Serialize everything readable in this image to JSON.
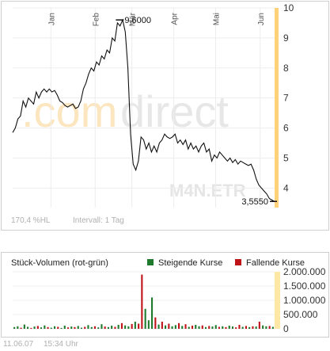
{
  "chart_data": [
    {
      "type": "line",
      "months": [
        "Jan",
        "Feb",
        "Mär",
        "Apr",
        "Mai",
        "Jun"
      ],
      "y_ticks": [
        "10",
        "9",
        "8",
        "7",
        "6",
        "5",
        "4"
      ],
      "ylim": [
        3.35,
        10
      ],
      "x_range": [
        0,
        100
      ],
      "y": [
        5.85,
        6.0,
        6.3,
        6.4,
        6.9,
        6.7,
        7.0,
        6.9,
        6.8,
        7.2,
        7.0,
        7.2,
        7.3,
        7.2,
        7.3,
        7.2,
        7.25,
        7.1,
        6.9,
        6.85,
        6.75,
        6.7,
        6.75,
        6.8,
        6.65,
        6.7,
        6.9,
        7.3,
        7.5,
        7.8,
        8.0,
        7.9,
        8.2,
        8.1,
        8.4,
        8.3,
        8.6,
        8.5,
        9.0,
        8.9,
        9.5,
        9.4,
        9.6,
        9.2,
        8.0,
        5.8,
        4.8,
        4.6,
        4.9,
        5.7,
        5.6,
        5.3,
        5.5,
        5.2,
        5.4,
        5.2,
        5.5,
        5.6,
        5.8,
        5.7,
        5.65,
        5.7,
        5.8,
        5.5,
        5.6,
        5.45,
        5.6,
        5.3,
        5.5,
        5.3,
        5.4,
        5.2,
        5.4,
        5.5,
        5.2,
        5.3,
        4.9,
        5.1,
        5.0,
        5.2,
        5.1,
        5.0,
        4.9,
        5.0,
        4.85,
        4.95,
        4.8,
        4.9,
        4.85,
        4.8,
        4.75,
        4.8,
        4.6,
        4.3,
        4.1,
        4.0,
        3.9,
        3.8,
        3.65,
        3.6,
        3.55
      ],
      "annotations": [
        {
          "label": "9,6000",
          "x": 41.5,
          "y": 9.6
        },
        {
          "label": "3,5550",
          "x": 100,
          "y": 3.555
        }
      ]
    },
    {
      "type": "bar",
      "title": "Stück-Volumen (rot-grün)",
      "y_ticks": [
        "2.000.000",
        "1.500.000",
        "1.000.000",
        "500.000",
        "0"
      ],
      "ylim": [
        0,
        2000000
      ],
      "series": [
        {
          "name": "Steigende Kurse",
          "color": "#1f7a2e"
        },
        {
          "name": "Fallende Kurse",
          "color": "#c0141a"
        }
      ],
      "values": [
        60000,
        90000,
        40000,
        150000,
        70000,
        30000,
        80000,
        100000,
        50000,
        120000,
        60000,
        40000,
        90000,
        70000,
        30000,
        110000,
        50000,
        80000,
        60000,
        100000,
        40000,
        70000,
        130000,
        60000,
        90000,
        50000,
        160000,
        80000,
        60000,
        110000,
        70000,
        140000,
        200000,
        120000,
        90000,
        170000,
        250000,
        180000,
        1900000,
        700000,
        300000,
        1100000,
        400000,
        150000,
        250000,
        120000,
        180000,
        90000,
        130000,
        200000,
        100000,
        160000,
        70000,
        110000,
        140000,
        90000,
        120000,
        60000,
        100000,
        80000,
        130000,
        70000,
        90000,
        60000,
        110000,
        80000,
        50000,
        140000,
        70000,
        100000,
        60000,
        90000,
        80000,
        250000,
        120000,
        90000,
        100000,
        70000
      ],
      "rising": [
        true,
        true,
        false,
        true,
        true,
        false,
        true,
        false,
        true,
        true,
        false,
        true,
        true,
        false,
        true,
        true,
        false,
        true,
        false,
        true,
        true,
        false,
        true,
        true,
        false,
        true,
        true,
        false,
        true,
        true,
        false,
        true,
        false,
        true,
        true,
        false,
        true,
        false,
        false,
        true,
        true,
        true,
        false,
        true,
        false,
        true,
        false,
        true,
        true,
        false,
        true,
        false,
        true,
        false,
        true,
        true,
        false,
        true,
        false,
        true,
        true,
        false,
        true,
        false,
        true,
        true,
        false,
        false,
        true,
        false,
        true,
        false,
        true,
        false,
        true,
        true,
        false,
        true
      ]
    }
  ],
  "watermark": {
    "part1": ".com",
    "part2": "direct",
    "sub": "M4N.ETR"
  },
  "price_info": {
    "percent": "170,4 %HL",
    "interval": "Intervall: 1 Tag"
  },
  "footer": {
    "date": "11.06.07",
    "time": "15:34 Uhr"
  },
  "colors": {
    "line": "#111111",
    "price_axis_stripe": "#ffd27a",
    "volume_axis_stripe": "#ffe7a6",
    "rising": "#1f7a2e",
    "falling": "#c0141a"
  }
}
